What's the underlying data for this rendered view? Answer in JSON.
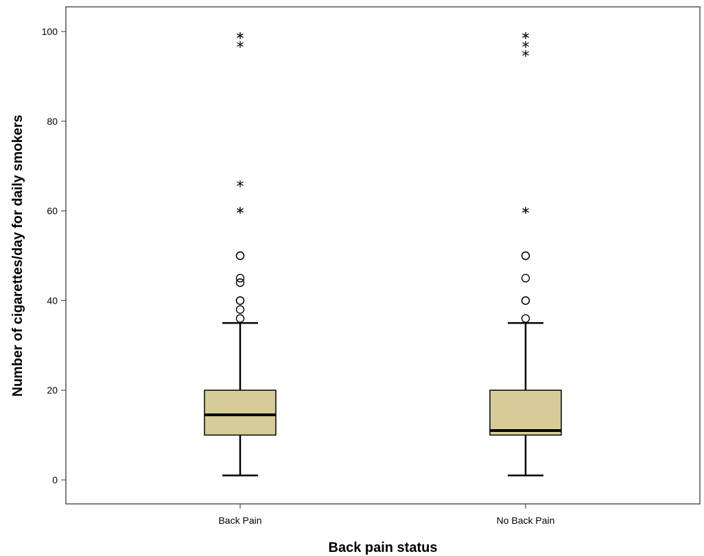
{
  "chart_data": {
    "type": "box",
    "title": "",
    "xlabel": "Back pain status",
    "ylabel": "Number of cigarettes/day for daily smokers",
    "ylim": [
      -5,
      105
    ],
    "yticks": [
      0,
      20,
      40,
      60,
      80,
      100
    ],
    "grid": false,
    "categories": [
      "Back Pain",
      "No Back Pain"
    ],
    "box_color": "#d5cc97",
    "boxes": [
      {
        "category": "Back Pain",
        "whisker_low": 1,
        "q1": 10,
        "median": 14.5,
        "q3": 20,
        "whisker_high": 35,
        "outliers": [
          36,
          38,
          40,
          40,
          44,
          45,
          50,
          50
        ],
        "extremes": [
          60,
          60,
          66,
          97,
          99,
          99
        ]
      },
      {
        "category": "No Back Pain",
        "whisker_low": 1,
        "q1": 10,
        "median": 11,
        "q3": 20,
        "whisker_high": 35,
        "outliers": [
          36,
          40,
          40,
          45,
          50,
          50
        ],
        "extremes": [
          60,
          60,
          95,
          97,
          99,
          99
        ]
      }
    ]
  }
}
